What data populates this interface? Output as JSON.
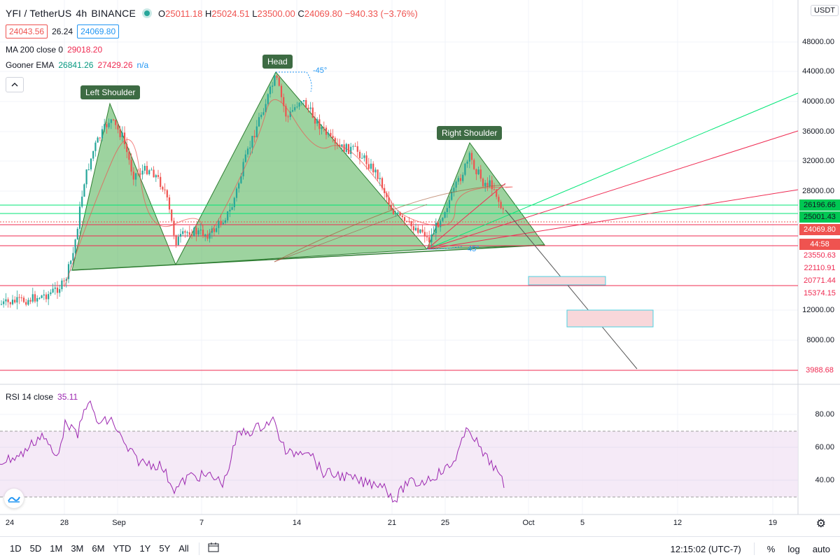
{
  "legend": {
    "symbol": "YFI / TetherUS",
    "interval": "4h",
    "exchange": "BINANCE",
    "ohlc": {
      "o_label": "O",
      "o": "25011.18",
      "h_label": "H",
      "h": "25024.51",
      "l_label": "L",
      "l": "23500.00",
      "c_label": "C",
      "c": "24069.80",
      "change": "−940.33 (−3.76%)"
    },
    "bid": "24043.56",
    "spread": "26.24",
    "ask": "24069.80",
    "ma": {
      "label": "MA 200 close 0",
      "value": "29018.20"
    },
    "gooner": {
      "label": "Gooner EMA",
      "v1": "26841.26",
      "v2": "27429.26",
      "v3": "n/a"
    },
    "collapse_icon": "chevron-up"
  },
  "annotations": {
    "left_shoulder": "Left Shoulder",
    "head": "Head",
    "right_shoulder": "Right Shoulder",
    "angle_head": "-45°",
    "angle_rs": "45°"
  },
  "price_axis": {
    "currency": "USDT",
    "ticks": [
      "48000.00",
      "44000.00",
      "40000.00",
      "36000.00",
      "32000.00",
      "28000.00",
      "12000.00",
      "8000.00"
    ],
    "tags": [
      {
        "label": "26196.66",
        "color": "#00c853",
        "text": "#131722"
      },
      {
        "label": "25001.43",
        "color": "#00c853",
        "text": "#131722"
      },
      {
        "label": "24069.80",
        "color": "#ef5350",
        "text": "#ffffff"
      },
      {
        "label": "44:58",
        "color": "#ef5350",
        "text": "#ffffff"
      },
      {
        "label": "23550.63",
        "color": "#ffffff",
        "text": "#ef2b52"
      },
      {
        "label": "22110.91",
        "color": "#ffffff",
        "text": "#ef2b52"
      },
      {
        "label": "20771.44",
        "color": "#ffffff",
        "text": "#ef2b52"
      },
      {
        "label": "15374.15",
        "color": "#ffffff",
        "text": "#ef2b52"
      },
      {
        "label": "3988.68",
        "color": "#ffffff",
        "text": "#ef2b52"
      }
    ]
  },
  "rsi": {
    "label": "RSI 14 close",
    "value": "35.11",
    "ticks": [
      "80.00",
      "60.00",
      "40.00"
    ]
  },
  "time_axis": [
    "24",
    "28",
    "Sep",
    "7",
    "14",
    "21",
    "25",
    "Oct",
    "5",
    "12",
    "19"
  ],
  "bottom_bar": {
    "timeframes": [
      "1D",
      "5D",
      "1M",
      "3M",
      "6M",
      "YTD",
      "1Y",
      "5Y",
      "All"
    ],
    "calendar_icon": "calendar-range-icon",
    "clock": "12:15:02 (UTC-7)",
    "percent": "%",
    "log": "log",
    "auto": "auto"
  },
  "colors": {
    "pattern_fill": "#5cb85c",
    "up": "#26a69a",
    "down": "#ef5350",
    "rsi_line": "#9c27b0",
    "rsi_band": "#f3e5f5",
    "green_line": "#00e676",
    "red_line": "#ef2b52"
  }
}
